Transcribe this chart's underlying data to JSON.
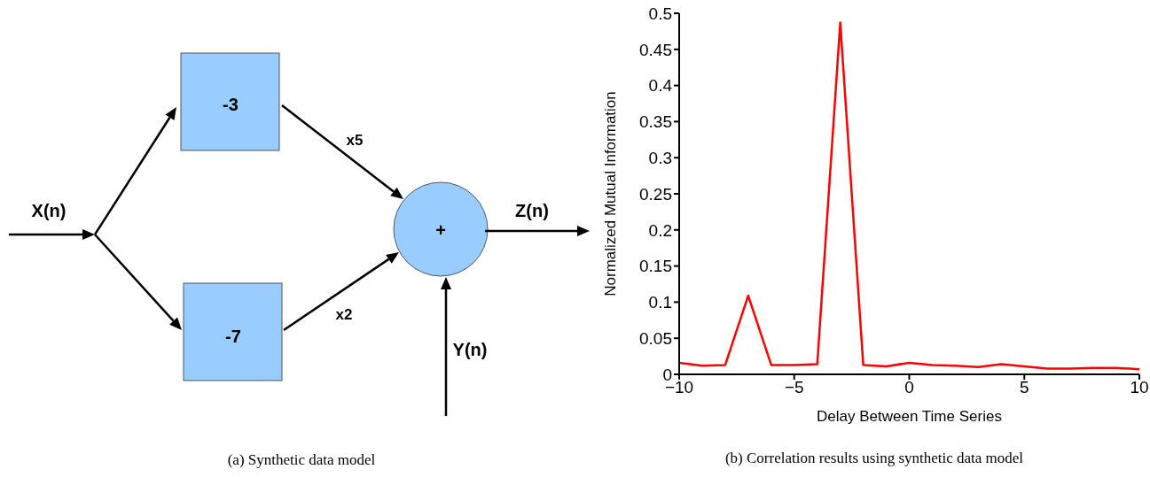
{
  "chart_data": [
    {
      "type": "other",
      "title": "(a) Synthetic data model",
      "annotations": [
        "X(n)",
        "-3",
        "-7",
        "x5",
        "x2",
        "+",
        "Z(n)",
        "Y(n)"
      ]
    },
    {
      "type": "line",
      "title": "(b) Correlation results using synthetic data model",
      "xlabel": "Delay Between Time Series",
      "ylabel": "Normalized Mutual Information",
      "x": [
        -10,
        -9,
        -8,
        -7,
        -6,
        -5,
        -4,
        -3,
        -2,
        -1,
        0,
        1,
        2,
        3,
        4,
        5,
        6,
        7,
        8,
        9,
        10
      ],
      "series": [
        {
          "color": "#ff0000",
          "values": [
            0.016,
            0.012,
            0.013,
            0.109,
            0.013,
            0.013,
            0.014,
            0.487,
            0.013,
            0.011,
            0.016,
            0.013,
            0.012,
            0.01,
            0.014,
            0.011,
            0.008,
            0.008,
            0.009,
            0.009,
            0.007
          ]
        }
      ],
      "xlim": [
        -10,
        10
      ],
      "xticks": [
        {
          "value": -10,
          "label": "−10"
        },
        {
          "value": -5,
          "label": "−5"
        },
        0,
        5,
        10
      ],
      "ylim": [
        0,
        0.5
      ],
      "yticks": [
        0,
        0.05,
        0.1,
        0.15,
        0.2,
        0.25,
        0.3,
        0.35,
        0.4,
        0.45,
        0.5
      ],
      "grid": false,
      "legend": false,
      "marker": "none",
      "line_style": "solid"
    }
  ]
}
